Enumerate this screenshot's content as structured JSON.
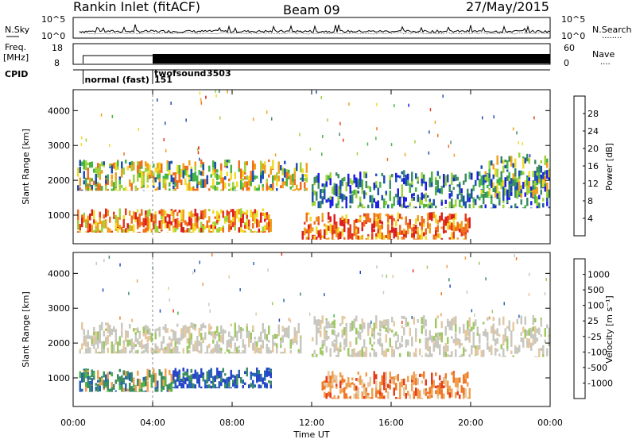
{
  "header": {
    "station": "Rankin Inlet (fitACF)",
    "beam": "Beam 09",
    "date": "27/May/2015"
  },
  "strip_panels": {
    "nsky": {
      "left_label": "N.Sky",
      "left_ticks": [
        "10^5",
        "10^0"
      ],
      "right_label": "N.Search",
      "right_ticks": [
        "10^5",
        "10^0"
      ],
      "right_marker": "........"
    },
    "freq": {
      "left_label_line1": "Freq.",
      "left_label_line2": "[MHz]",
      "left_ticks": [
        "18",
        "8"
      ],
      "right_label": "Nave",
      "right_ticks": [
        "60",
        "0"
      ],
      "right_marker": "...."
    },
    "cpid": {
      "label": "CPID",
      "segments": [
        {
          "name": "normal (fast)",
          "id": "151",
          "start_hour": 0.5,
          "end_hour": 4.0
        },
        {
          "name": "twofsound",
          "id": "3503",
          "start_hour": 4.0,
          "end_hour": 24.0
        }
      ]
    }
  },
  "chart_data": [
    {
      "type": "heatmap",
      "title": "",
      "xlabel": "",
      "ylabel": "Slant Range [km]",
      "x_tick_labels": [
        "00:00",
        "04:00",
        "08:00",
        "12:00",
        "16:00",
        "20:00",
        "00:00"
      ],
      "x_ticks_hours": [
        0,
        4,
        8,
        12,
        16,
        20,
        24
      ],
      "xlim_hours": [
        0,
        24
      ],
      "ylim": [
        180,
        4600
      ],
      "y_ticks": [
        1000,
        2000,
        3000,
        4000
      ],
      "colorbar_label": "Power [dB]",
      "colorbar_ticks": [
        "28",
        "24",
        "20",
        "16",
        "12",
        "8",
        "4"
      ],
      "colorbar_colors": [
        "#1e1ee6",
        "#1e50b4",
        "#3c8c64",
        "#46b446",
        "#a0d23c",
        "#f0dc28",
        "#f0a01e",
        "#f06e1e",
        "#e63c1e",
        "#dc1e1e"
      ],
      "regions": [
        {
          "hours": [
            0.2,
            11.8
          ],
          "range_km": [
            1700,
            2600
          ],
          "level": "medium-high power band (12-28 dB)"
        },
        {
          "hours": [
            0.2,
            10.0
          ],
          "range_km": [
            500,
            1200
          ],
          "level": "high power band (16-32 dB)"
        },
        {
          "hours": [
            11.5,
            20.0
          ],
          "range_km": [
            300,
            1100
          ],
          "level": "high power band (16-32 dB)"
        },
        {
          "hours": [
            12.0,
            24.0
          ],
          "range_km": [
            1200,
            2300
          ],
          "level": "low power band (4-12 dB)"
        },
        {
          "hours": [
            20.5,
            24.0
          ],
          "range_km": [
            1500,
            2800
          ],
          "level": "medium power band (8-24 dB)"
        }
      ]
    },
    {
      "type": "heatmap",
      "title": "",
      "xlabel": "Time UT",
      "ylabel": "Slant Range [km]",
      "x_tick_labels": [
        "00:00",
        "04:00",
        "08:00",
        "12:00",
        "16:00",
        "20:00",
        "00:00"
      ],
      "x_ticks_hours": [
        0,
        4,
        8,
        12,
        16,
        20,
        24
      ],
      "xlim_hours": [
        0,
        24
      ],
      "ylim": [
        180,
        4600
      ],
      "y_ticks": [
        1000,
        2000,
        3000,
        4000
      ],
      "colorbar_label": "Velocity [m s⁻¹]",
      "colorbar_ticks": [
        "1000",
        "500",
        "100",
        "25",
        "-25",
        "-100",
        "-500",
        "-1000"
      ],
      "colorbar_colors": [
        "#2846c8",
        "#2864b4",
        "#3c8c64",
        "#50b446",
        "#a0c864",
        "#c8c8c0",
        "#e6c8a0",
        "#f0a050",
        "#f07828",
        "#e63c1e",
        "#dc1e1e"
      ],
      "regions": [
        {
          "hours": [
            0.3,
            11.5
          ],
          "range_km": [
            1700,
            2600
          ],
          "level": "ground scatter (-25 to 25 m/s)"
        },
        {
          "hours": [
            0.3,
            5.0
          ],
          "range_km": [
            600,
            1300
          ],
          "level": "positive velocity (100-500 m/s)"
        },
        {
          "hours": [
            5.0,
            10.0
          ],
          "range_km": [
            700,
            1300
          ],
          "level": "strong positive velocity (500-1000 m/s)"
        },
        {
          "hours": [
            12.5,
            20.0
          ],
          "range_km": [
            400,
            1200
          ],
          "level": "negative velocity (-100 to -500 m/s)"
        },
        {
          "hours": [
            12.0,
            24.0
          ],
          "range_km": [
            1600,
            2800
          ],
          "level": "ground scatter (-25 to 25 m/s)"
        }
      ]
    }
  ]
}
